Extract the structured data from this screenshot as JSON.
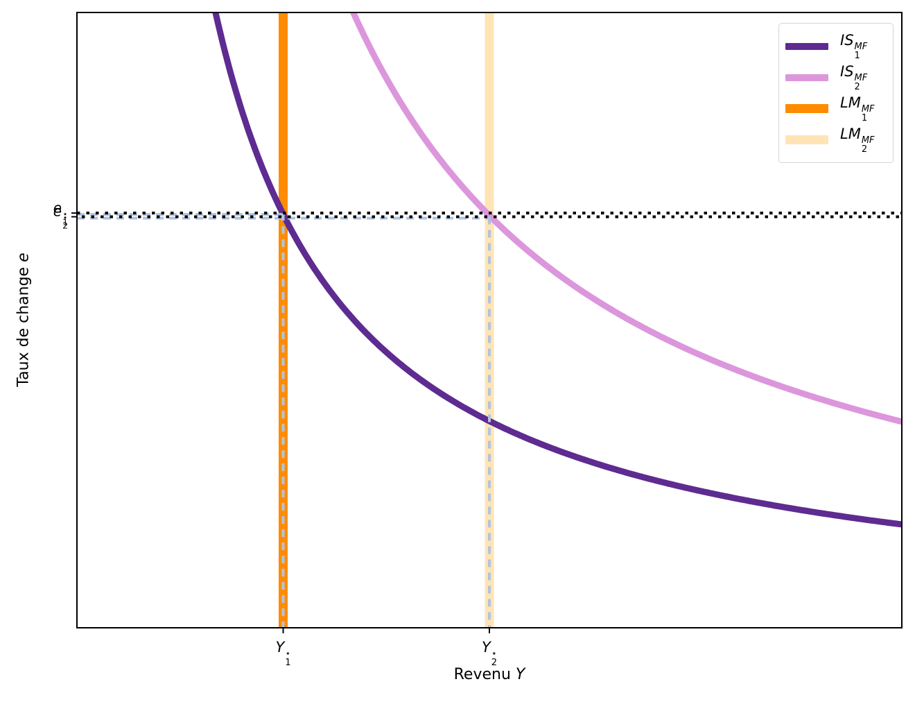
{
  "chart_data": {
    "type": "line",
    "title": "",
    "xlabel": {
      "text": "Revenu ",
      "var": "Y"
    },
    "ylabel": {
      "text": "Taux de change ",
      "var": "e"
    },
    "xlim": [
      0,
      10
    ],
    "ylim": [
      0,
      10
    ],
    "grid": false,
    "legend_position": "upper right",
    "series": [
      {
        "name": "IS1_MF",
        "label": {
          "base": "IS",
          "sub": "1",
          "sup": "MF"
        },
        "type": "hyperbola",
        "equation": "e = 16.8 / Y",
        "k": 16.8,
        "color": "#5e2b91",
        "width": 9
      },
      {
        "name": "IS2_MF",
        "label": {
          "base": "IS",
          "sub": "2",
          "sup": "MF"
        },
        "type": "hyperbola",
        "equation": "e = 33.5 / Y",
        "k": 33.5,
        "color": "#dc96dc",
        "width": 9
      },
      {
        "name": "LM1_MF",
        "label": {
          "base": "LM",
          "sub": "1",
          "sup": "MF"
        },
        "type": "vline",
        "x": 2.5,
        "color": "#ff8c00",
        "width": 13
      },
      {
        "name": "LM2_MF",
        "label": {
          "base": "LM",
          "sub": "2",
          "sup": "MF"
        },
        "type": "vline",
        "x": 5.0,
        "color": "#ffe4b5",
        "width": 13
      }
    ],
    "equilibria": [
      {
        "Y": 2.5,
        "e": 6.74,
        "x_tick": {
          "base": "Y",
          "sub": "1",
          "sup": "⋆"
        },
        "y_tick": {
          "base": "e",
          "sub": "1",
          "sup": "⋆"
        }
      },
      {
        "Y": 5.0,
        "e": 6.68,
        "x_tick": {
          "base": "Y",
          "sub": "2",
          "sup": "⋆"
        },
        "y_tick": {
          "base": "e",
          "sub": "2",
          "sup": "⋆"
        }
      }
    ],
    "annotations": {
      "equilibrium_dotted_color": "#000000",
      "projection_dashed_color": "#b0c4de"
    }
  }
}
